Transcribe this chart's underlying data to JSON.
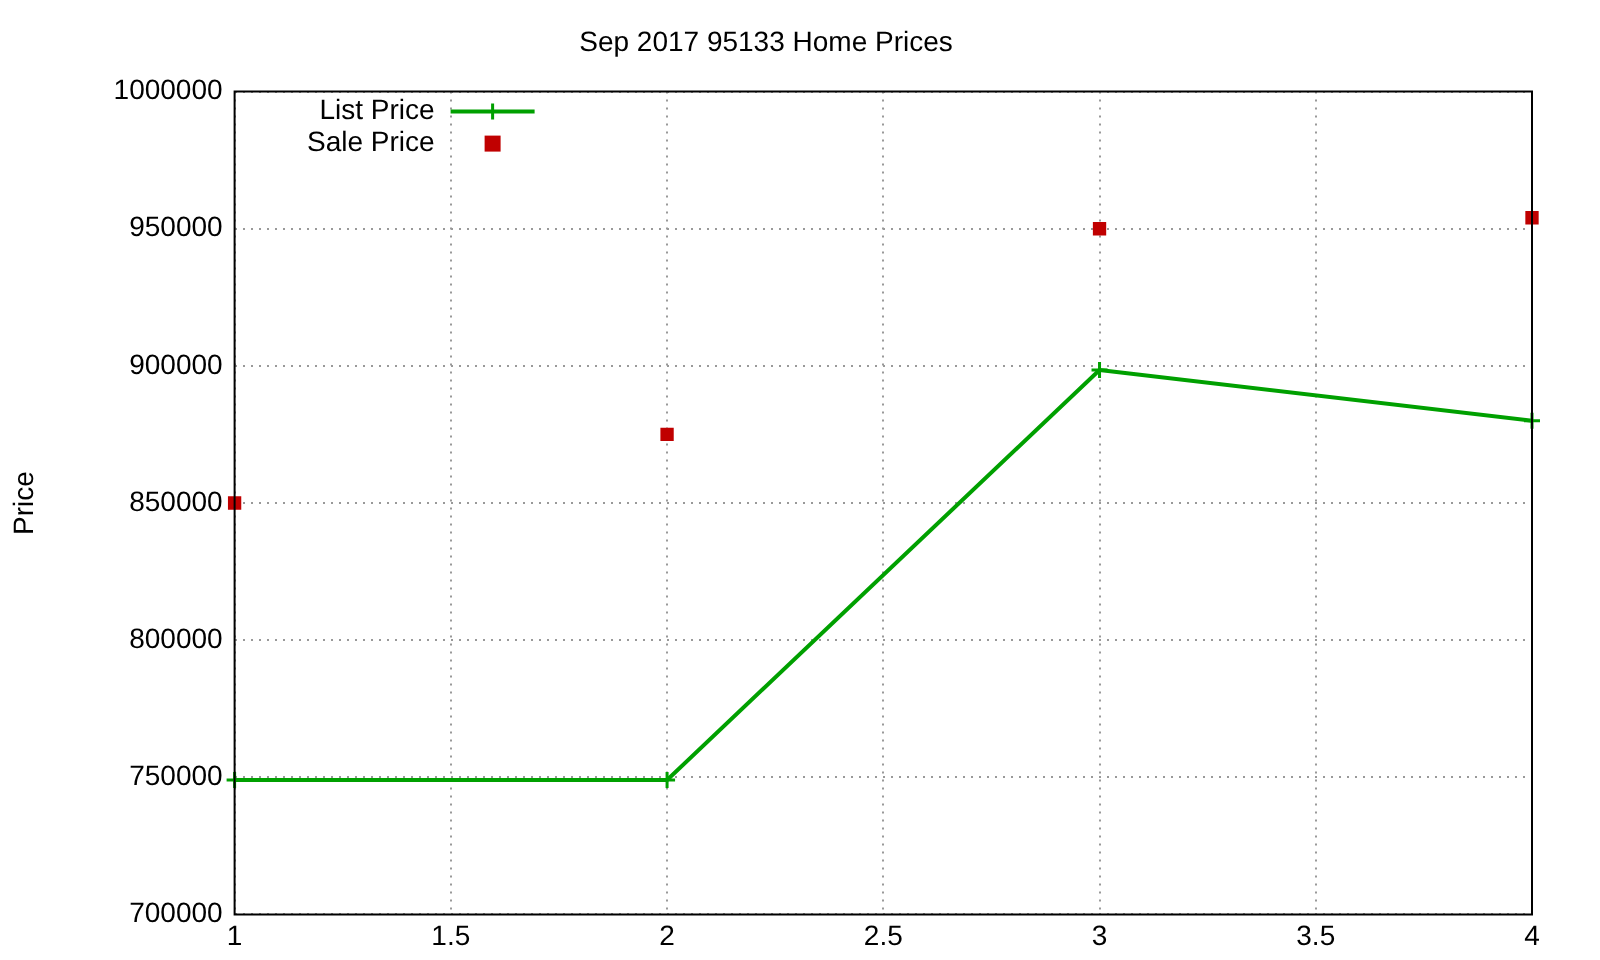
{
  "chart_data": {
    "type": "line",
    "title": "Sep 2017 95133 Home Prices",
    "ylabel": "Price",
    "x": [
      1,
      2,
      3,
      4
    ],
    "series": [
      {
        "name": "List Price",
        "type": "line",
        "color": "#00a000",
        "marker": "cross",
        "values": [
          749000,
          749000,
          898500,
          880000
        ]
      },
      {
        "name": "Sale Price",
        "type": "scatter",
        "color": "#c00000",
        "marker": "square",
        "values": [
          850000,
          875000,
          950000,
          954000
        ]
      }
    ],
    "xlim": [
      1,
      4
    ],
    "xticks": [
      1,
      1.5,
      2,
      2.5,
      3,
      3.5,
      4
    ],
    "ylim": [
      700000,
      1000000
    ],
    "yticks": [
      700000,
      750000,
      800000,
      850000,
      900000,
      950000,
      1000000
    ],
    "grid": true,
    "legend": "top left"
  }
}
